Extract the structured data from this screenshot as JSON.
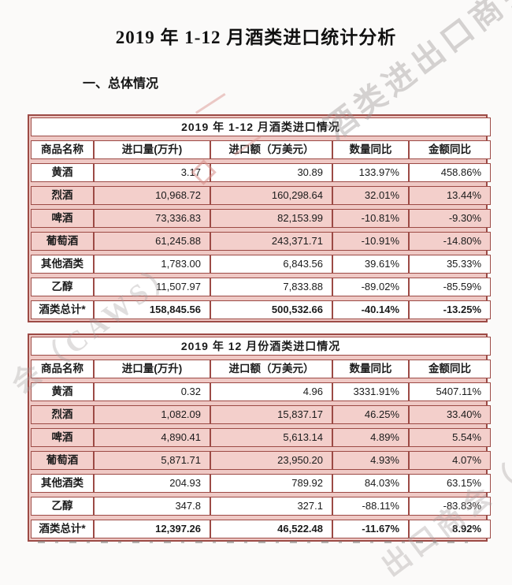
{
  "doc": {
    "title": "2019 年 1-12 月酒类进口统计分析",
    "section_heading": "一、总体情况"
  },
  "columns": [
    "商品名称",
    "进口量(万升)",
    "进口额（万美元）",
    "数量同比",
    "金额同比"
  ],
  "tables": [
    {
      "title": "2019 年 1-12 月酒类进口情况",
      "rows": [
        {
          "name": "黄酒",
          "values": [
            "3.17",
            "30.89",
            "133.97%",
            "458.86%"
          ],
          "highlighted": false,
          "total": false
        },
        {
          "name": "烈酒",
          "values": [
            "10,968.72",
            "160,298.64",
            "32.01%",
            "13.44%"
          ],
          "highlighted": true,
          "total": false
        },
        {
          "name": "啤酒",
          "values": [
            "73,336.83",
            "82,153.99",
            "-10.81%",
            "-9.30%"
          ],
          "highlighted": true,
          "total": false
        },
        {
          "name": "葡萄酒",
          "values": [
            "61,245.88",
            "243,371.71",
            "-10.91%",
            "-14.80%"
          ],
          "highlighted": true,
          "total": false
        },
        {
          "name": "其他酒类",
          "values": [
            "1,783.00",
            "6,843.56",
            "39.61%",
            "35.33%"
          ],
          "highlighted": false,
          "total": false
        },
        {
          "name": "乙醇",
          "values": [
            "11,507.97",
            "7,833.88",
            "-89.02%",
            "-85.59%"
          ],
          "highlighted": false,
          "total": false
        },
        {
          "name": "酒类总计*",
          "values": [
            "158,845.56",
            "500,532.66",
            "-40.14%",
            "-13.25%"
          ],
          "highlighted": false,
          "total": true
        }
      ]
    },
    {
      "title": "2019 年 12 月份酒类进口情况",
      "rows": [
        {
          "name": "黄酒",
          "values": [
            "0.32",
            "4.96",
            "3331.91%",
            "5407.11%"
          ],
          "highlighted": false,
          "total": false
        },
        {
          "name": "烈酒",
          "values": [
            "1,082.09",
            "15,837.17",
            "46.25%",
            "33.40%"
          ],
          "highlighted": true,
          "total": false
        },
        {
          "name": "啤酒",
          "values": [
            "4,890.41",
            "5,613.14",
            "4.89%",
            "5.54%"
          ],
          "highlighted": true,
          "total": false
        },
        {
          "name": "葡萄酒",
          "values": [
            "5,871.71",
            "23,950.20",
            "4.93%",
            "4.07%"
          ],
          "highlighted": true,
          "total": false
        },
        {
          "name": "其他酒类",
          "values": [
            "204.93",
            "789.92",
            "84.03%",
            "63.15%"
          ],
          "highlighted": false,
          "total": false
        },
        {
          "name": "乙醇",
          "values": [
            "347.8",
            "327.1",
            "-88.11%",
            "-83.83%"
          ],
          "highlighted": false,
          "total": false
        },
        {
          "name": "酒类总计*",
          "values": [
            "12,397.26",
            "46,522.48",
            "-11.67%",
            "8.92%"
          ],
          "highlighted": false,
          "total": true
        }
      ]
    }
  ],
  "watermarks": [
    "酒类进出口商会",
    "会（CAWS）",
    "出口商会（CAWS）"
  ],
  "colors": {
    "table_border": "#9c4a45",
    "highlight_pink": "#f3cfcb",
    "table_gap_pink": "#efc9c5"
  }
}
